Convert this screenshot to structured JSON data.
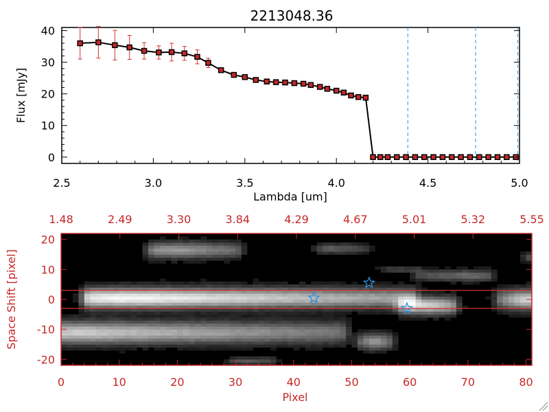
{
  "chart_data": [
    {
      "type": "line",
      "title": "2213048.36",
      "xlabel": "Lambda [um]",
      "ylabel": "Flux [mJy]",
      "xlim": [
        2.5,
        5.0
      ],
      "ylim": [
        -2,
        41
      ],
      "xticks": [
        "2.5",
        "3.0",
        "3.5",
        "4.0",
        "4.5",
        "5.0"
      ],
      "yticks": [
        "0",
        "10",
        "20",
        "30",
        "40"
      ],
      "series": [
        {
          "name": "flux",
          "x": [
            2.6,
            2.7,
            2.79,
            2.87,
            2.95,
            3.03,
            3.1,
            3.17,
            3.24,
            3.3,
            3.37,
            3.44,
            3.5,
            3.56,
            3.62,
            3.67,
            3.72,
            3.77,
            3.82,
            3.86,
            3.91,
            3.95,
            4.0,
            4.04,
            4.08,
            4.12,
            4.16,
            4.2,
            4.24,
            4.28,
            4.33,
            4.38,
            4.43,
            4.48,
            4.53,
            4.58,
            4.63,
            4.68,
            4.73,
            4.78,
            4.83,
            4.88,
            4.93,
            4.98
          ],
          "y": [
            36,
            36.3,
            35.4,
            34.7,
            33.6,
            33.1,
            33.2,
            32.8,
            31.7,
            29.8,
            27.5,
            26,
            25.3,
            24.4,
            23.9,
            23.7,
            23.6,
            23.4,
            23.2,
            22.8,
            22.2,
            21.6,
            21,
            20.4,
            19.5,
            19,
            18.8,
            0,
            0,
            0,
            0,
            0,
            0,
            0,
            0,
            0,
            0,
            0,
            0,
            0,
            0,
            0,
            0,
            0
          ],
          "err": [
            5,
            5,
            4.7,
            3.8,
            2.6,
            2.1,
            2.8,
            2.2,
            2.2,
            1.5,
            0.5,
            0.5,
            0.5,
            0.5,
            0.4,
            0.4,
            0.4,
            0.4,
            0.4,
            0.4,
            0.4,
            0.4,
            0.4,
            0.4,
            0.4,
            0.4,
            0.4,
            0,
            0,
            0,
            0,
            0,
            0,
            0,
            0,
            0,
            0,
            0,
            0,
            0,
            0,
            0,
            0,
            0
          ]
        }
      ],
      "vlines": [
        4.39,
        4.76,
        4.99
      ]
    },
    {
      "type": "heatmap",
      "xlabel": "Pixel",
      "ylabel": "Space Shift [pixel]",
      "xlim": [
        0,
        81
      ],
      "ylim": [
        -22,
        22
      ],
      "xticks": [
        "0",
        "10",
        "20",
        "30",
        "40",
        "50",
        "60",
        "70",
        "80"
      ],
      "yticks": [
        "-20",
        "-10",
        "0",
        "10",
        "20"
      ],
      "top_ticks": [
        "1.48",
        "2.49",
        "3.30",
        "3.84",
        "4.29",
        "4.67",
        "5.01",
        "5.32",
        "5.55"
      ],
      "hlines": [
        3,
        -3
      ],
      "stars": [
        {
          "x": 43.5,
          "y": 0.5
        },
        {
          "x": 53,
          "y": 5.5
        },
        {
          "x": 59.5,
          "y": -3
        }
      ],
      "blobs": [
        {
          "x0": 5,
          "x1": 60,
          "y": 0.5,
          "h": 3.2,
          "peak": 12,
          "w": 0.95
        },
        {
          "x0": 0,
          "x1": 48,
          "y": -11,
          "h": 3.6,
          "peak": 3,
          "w": 0.75
        },
        {
          "x0": 16,
          "x1": 30,
          "y": 16.5,
          "h": 2.6,
          "peak": 20,
          "w": 0.55
        },
        {
          "x0": 59,
          "x1": 67,
          "y": -2,
          "h": 2.8,
          "peak": 63,
          "w": 0.8
        },
        {
          "x0": 76,
          "x1": 81,
          "y": 0,
          "h": 3.2,
          "peak": 80,
          "w": 0.8
        },
        {
          "x0": 52,
          "x1": 56,
          "y": -14,
          "h": 2.6,
          "peak": 54,
          "w": 0.55
        },
        {
          "x0": 62,
          "x1": 73,
          "y": 8,
          "h": 1.8,
          "peak": 70,
          "w": 0.38
        },
        {
          "x0": 45,
          "x1": 52,
          "y": 17,
          "h": 1.6,
          "peak": 47,
          "w": 0.32
        },
        {
          "x0": 30,
          "x1": 36,
          "y": -20.5,
          "h": 1.2,
          "peak": 32,
          "w": 0.3
        },
        {
          "x0": 56,
          "x1": 61,
          "y": 10,
          "h": 1.0,
          "peak": 58,
          "w": 0.22
        },
        {
          "x0": 80,
          "x1": 81,
          "y": 14,
          "h": 1.5,
          "peak": 80.5,
          "w": 0.25
        }
      ]
    }
  ]
}
